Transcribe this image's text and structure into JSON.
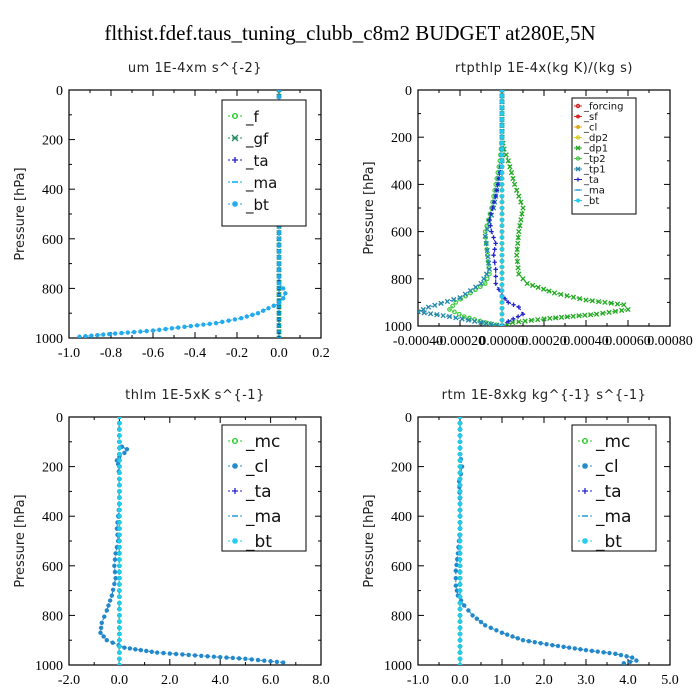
{
  "figure": {
    "title": "flthist.fdef.taus_tuning_clubb_c8m2  BUDGET at280E,5N"
  },
  "chart_data": [
    {
      "type": "line",
      "title": "um  1E-4xm s^{-2}",
      "xlabel": "",
      "ylabel": "Pressure [hPa]",
      "xlim": [
        -1.0,
        0.2
      ],
      "ylim": [
        1000,
        0
      ],
      "xticks": [
        "-1.0",
        "-0.8",
        "-0.6",
        "-0.4",
        "-0.2",
        "0.0",
        "0.2"
      ],
      "yticks": [
        "0",
        "200",
        "400",
        "600",
        "800",
        "1000"
      ],
      "legend_position": "top-right",
      "series": [
        {
          "name": "_f",
          "color": "#22cc22",
          "marker": "circle",
          "x": [
            0.0,
            0.0,
            0.0,
            0.0,
            0.0,
            0.0,
            0.0,
            0.0,
            0.0,
            0.0,
            0.0,
            0.0,
            0.0
          ],
          "y": [
            0,
            100,
            200,
            300,
            400,
            500,
            600,
            700,
            800,
            850,
            900,
            950,
            1000
          ]
        },
        {
          "name": "_gf",
          "color": "#1a8a5a",
          "marker": "x",
          "x": [
            0.0,
            0.0,
            0.0,
            0.0,
            0.0,
            0.0,
            0.0,
            0.0,
            0.0,
            0.0,
            0.0,
            0.0,
            0.0
          ],
          "y": [
            0,
            100,
            200,
            300,
            400,
            500,
            600,
            700,
            800,
            850,
            900,
            950,
            1000
          ]
        },
        {
          "name": "_ta",
          "color": "#1a1acc",
          "marker": "plus",
          "x": [
            0.0,
            0.0,
            0.0,
            0.0,
            0.0,
            0.0,
            0.0,
            0.0,
            0.0,
            0.0,
            0.0,
            0.0,
            0.0
          ],
          "y": [
            0,
            100,
            200,
            300,
            400,
            500,
            600,
            700,
            800,
            850,
            900,
            950,
            1000
          ]
        },
        {
          "name": "_ma",
          "color": "#00aaee",
          "marker": "dash",
          "x": [
            0.0,
            0.0,
            0.0,
            0.0,
            0.0,
            0.0,
            0.0,
            0.0,
            0.0,
            0.0,
            0.0,
            0.0,
            0.0
          ],
          "y": [
            0,
            100,
            200,
            300,
            400,
            500,
            600,
            700,
            800,
            850,
            900,
            950,
            1000
          ]
        },
        {
          "name": "_bt",
          "color": "#22aaee",
          "marker": "star",
          "x": [
            0.0,
            0.0,
            0.01,
            0.03,
            0.04,
            0.01,
            -0.01,
            0.0,
            0.0,
            0.0,
            0.0,
            0.0,
            0.0,
            0.0,
            0.02,
            0.03,
            0.02,
            0.0,
            -0.05,
            -0.1,
            -0.18,
            -0.3,
            -0.45,
            -0.6,
            -0.78,
            -0.95
          ],
          "y": [
            0,
            80,
            110,
            120,
            135,
            150,
            170,
            200,
            300,
            400,
            500,
            600,
            700,
            780,
            800,
            820,
            840,
            860,
            880,
            900,
            920,
            940,
            955,
            970,
            982,
            995
          ]
        }
      ]
    },
    {
      "type": "line",
      "title": "rtpthlp  1E-4x(kg K)/(kg s)",
      "xlabel": "",
      "ylabel": "Pressure [hPa]",
      "xlim": [
        -0.0004,
        0.0008
      ],
      "ylim": [
        1000,
        0
      ],
      "xticks": [
        "-0.00040",
        "-0.00020",
        "0.00000",
        "0.00020",
        "0.00040",
        "0.00060",
        "0.00080"
      ],
      "yticks": [
        "0",
        "200",
        "400",
        "600",
        "800",
        "1000"
      ],
      "legend_position": "top-right",
      "series": [
        {
          "name": "_forcing",
          "color": "#cc2222",
          "marker": "circle",
          "x": [
            0.0,
            0.0,
            0.0,
            0.0,
            0.0,
            0.0,
            0.0,
            0.0,
            0.0,
            0.0,
            0.0
          ],
          "y": [
            0,
            100,
            200,
            300,
            400,
            500,
            600,
            700,
            800,
            900,
            1000
          ]
        },
        {
          "name": "_sf",
          "color": "#dd2222",
          "marker": "star",
          "x": [
            0.0,
            0.0,
            0.0,
            0.0,
            0.0,
            0.0,
            0.0,
            0.0,
            0.0,
            0.0,
            0.0
          ],
          "y": [
            0,
            100,
            200,
            300,
            400,
            500,
            600,
            700,
            800,
            900,
            1000
          ]
        },
        {
          "name": "_cl",
          "color": "#ddaa22",
          "marker": "star",
          "x": [
            0.0,
            0.0,
            0.0,
            0.0,
            0.0,
            0.0,
            0.0,
            0.0,
            0.0,
            0.0,
            0.0
          ],
          "y": [
            0,
            100,
            200,
            300,
            400,
            500,
            600,
            700,
            800,
            900,
            1000
          ]
        },
        {
          "name": "_dp2",
          "color": "#ddcc22",
          "marker": "circle",
          "x": [
            0.0,
            0.0,
            0.0,
            0.0,
            0.0,
            0.0,
            0.0,
            0.0,
            0.0,
            0.0,
            0.0
          ],
          "y": [
            0,
            100,
            200,
            300,
            400,
            500,
            600,
            700,
            800,
            900,
            1000
          ]
        },
        {
          "name": "_dp1",
          "color": "#22aa22",
          "marker": "x",
          "x": [
            0.0,
            0.0,
            1e-05,
            3e-05,
            6e-05,
            0.0001,
            8e-05,
            7e-05,
            8e-05,
            0.00012,
            0.00025,
            0.0004,
            0.00058,
            0.0006,
            0.00045,
            0.0002,
            5e-05,
            0.0
          ],
          "y": [
            0,
            200,
            250,
            300,
            400,
            500,
            600,
            700,
            780,
            820,
            860,
            890,
            910,
            930,
            950,
            970,
            985,
            1000
          ]
        },
        {
          "name": "_tp2",
          "color": "#44cc44",
          "marker": "circle",
          "x": [
            0.0,
            0.0,
            -1e-05,
            -3e-05,
            -5e-05,
            -8e-05,
            -7e-05,
            -6e-05,
            -8e-05,
            -0.00015,
            -0.00022,
            -0.00025,
            -0.00018,
            -8e-05,
            0.0
          ],
          "y": [
            0,
            200,
            300,
            400,
            500,
            600,
            700,
            780,
            820,
            860,
            900,
            930,
            960,
            985,
            1000
          ]
        },
        {
          "name": "_tp1",
          "color": "#2288aa",
          "marker": "x",
          "x": [
            0.0,
            0.0,
            -2e-05,
            -4e-05,
            -6e-05,
            -8e-05,
            -7e-05,
            -6e-05,
            -0.0001,
            -0.0002,
            -0.00035,
            -0.0004,
            -0.00025,
            -0.0001,
            0.0
          ],
          "y": [
            0,
            300,
            400,
            500,
            560,
            620,
            680,
            760,
            820,
            880,
            920,
            940,
            960,
            985,
            1000
          ]
        },
        {
          "name": "_ta",
          "color": "#2222cc",
          "marker": "plus",
          "x": [
            0.0,
            0.0,
            -3e-05,
            -6e-05,
            -5e-05,
            -3e-05,
            -4e-05,
            -3e-05,
            -3e-05,
            0.0,
            3e-05,
            8e-05,
            0.0001,
            3e-05,
            0.0
          ],
          "y": [
            0,
            300,
            450,
            550,
            600,
            650,
            700,
            760,
            820,
            870,
            900,
            920,
            950,
            980,
            1000
          ]
        },
        {
          "name": "_ma",
          "color": "#2299dd",
          "marker": "dash",
          "x": [
            0.0,
            0.0,
            0.0,
            0.0,
            0.0,
            0.0,
            0.0,
            0.0,
            0.0,
            0.0,
            0.0
          ],
          "y": [
            0,
            100,
            200,
            300,
            400,
            500,
            600,
            700,
            800,
            900,
            1000
          ]
        },
        {
          "name": "_bt",
          "color": "#22ccee",
          "marker": "star",
          "x": [
            0.0,
            0.0,
            0.0,
            0.0,
            0.0,
            0.0,
            0.0,
            0.0,
            0.0,
            0.0,
            0.0
          ],
          "y": [
            0,
            100,
            200,
            300,
            400,
            500,
            600,
            700,
            800,
            900,
            1000
          ]
        }
      ]
    },
    {
      "type": "line",
      "title": "thlm  1E-5xK s^{-1}",
      "xlabel": "",
      "ylabel": "Pressure [hPa]",
      "xlim": [
        -2.0,
        8.0
      ],
      "ylim": [
        1000,
        0
      ],
      "xticks": [
        "-2.0",
        "0.0",
        "2.0",
        "4.0",
        "6.0",
        "8.0"
      ],
      "yticks": [
        "0",
        "200",
        "400",
        "600",
        "800",
        "1000"
      ],
      "legend_position": "top-right",
      "series": [
        {
          "name": "_mc",
          "color": "#22cc22",
          "marker": "circle",
          "x": [
            0.0,
            0.0,
            0.0,
            0.0,
            0.0,
            0.0,
            0.0,
            0.0,
            0.0,
            0.0,
            0.0
          ],
          "y": [
            0,
            100,
            200,
            300,
            400,
            500,
            600,
            700,
            800,
            900,
            1000
          ]
        },
        {
          "name": "_cl",
          "color": "#2288cc",
          "marker": "star",
          "x": [
            0.0,
            0.0,
            0.1,
            0.3,
            0.2,
            0.0,
            -0.1,
            -0.05,
            0.0,
            0.0,
            -0.1,
            -0.05,
            -0.15,
            -0.2,
            -0.15,
            -0.3,
            -0.5,
            -0.7,
            -0.75,
            -0.5,
            0.2,
            1.5,
            3.5,
            5.0,
            6.0,
            6.5
          ],
          "y": [
            0,
            100,
            120,
            130,
            145,
            160,
            175,
            190,
            250,
            350,
            450,
            500,
            550,
            600,
            650,
            720,
            780,
            830,
            870,
            900,
            930,
            950,
            965,
            975,
            985,
            990
          ]
        },
        {
          "name": "_ta",
          "color": "#2222cc",
          "marker": "plus",
          "x": [
            0.0,
            0.0,
            0.0,
            0.0,
            0.0,
            0.0,
            0.0,
            0.0,
            0.0,
            0.0,
            0.0
          ],
          "y": [
            0,
            100,
            200,
            300,
            400,
            500,
            600,
            700,
            800,
            900,
            1000
          ]
        },
        {
          "name": "_ma",
          "color": "#2299dd",
          "marker": "dash",
          "x": [
            0.0,
            0.0,
            0.0,
            0.0,
            0.0,
            0.0,
            0.0,
            0.0,
            0.0,
            0.0,
            0.0
          ],
          "y": [
            0,
            100,
            200,
            300,
            400,
            500,
            600,
            700,
            800,
            900,
            1000
          ]
        },
        {
          "name": "_bt",
          "color": "#22ccee",
          "marker": "star",
          "x": [
            0.0,
            0.0,
            0.0,
            0.0,
            0.0,
            0.0,
            0.0,
            0.0,
            0.0,
            0.0,
            0.0
          ],
          "y": [
            0,
            100,
            200,
            300,
            400,
            500,
            600,
            700,
            800,
            900,
            1000
          ]
        }
      ]
    },
    {
      "type": "line",
      "title": "rtm  1E-8xkg kg^{-1} s^{-1}",
      "xlabel": "",
      "ylabel": "Pressure [hPa]",
      "xlim": [
        -1.0,
        5.0
      ],
      "ylim": [
        1000,
        0
      ],
      "xticks": [
        "-1.0",
        "0.0",
        "1.0",
        "2.0",
        "3.0",
        "4.0",
        "5.0"
      ],
      "yticks": [
        "0",
        "200",
        "400",
        "600",
        "800",
        "1000"
      ],
      "legend_position": "top-right",
      "series": [
        {
          "name": "_mc",
          "color": "#22cc22",
          "marker": "circle",
          "x": [
            0.0,
            0.0,
            0.0,
            0.0,
            0.0,
            0.0,
            0.0,
            0.0,
            0.0,
            0.0,
            0.0
          ],
          "y": [
            0,
            100,
            200,
            300,
            400,
            500,
            600,
            700,
            800,
            900,
            1000
          ]
        },
        {
          "name": "_cl",
          "color": "#2288cc",
          "marker": "star",
          "x": [
            0.0,
            0.0,
            0.02,
            0.05,
            0.02,
            -0.02,
            0.0,
            0.0,
            -0.05,
            -0.1,
            -0.1,
            -0.05,
            0.1,
            0.3,
            0.6,
            1.0,
            1.5,
            2.2,
            3.0,
            3.7,
            4.1,
            4.2,
            3.9
          ],
          "y": [
            0,
            150,
            170,
            200,
            230,
            260,
            350,
            450,
            550,
            620,
            680,
            720,
            760,
            800,
            840,
            870,
            900,
            920,
            940,
            955,
            970,
            982,
            993
          ]
        },
        {
          "name": "_ta",
          "color": "#2222cc",
          "marker": "plus",
          "x": [
            0.0,
            0.0,
            0.0,
            0.0,
            0.0,
            0.0,
            0.0,
            0.0,
            0.0,
            0.0,
            0.0
          ],
          "y": [
            0,
            100,
            200,
            300,
            400,
            500,
            600,
            700,
            800,
            900,
            1000
          ]
        },
        {
          "name": "_ma",
          "color": "#2299dd",
          "marker": "dash",
          "x": [
            0.0,
            0.0,
            0.0,
            0.0,
            0.0,
            0.0,
            0.0,
            0.0,
            0.0,
            0.0,
            0.0
          ],
          "y": [
            0,
            100,
            200,
            300,
            400,
            500,
            600,
            700,
            800,
            900,
            1000
          ]
        },
        {
          "name": "_bt",
          "color": "#22ccee",
          "marker": "star",
          "x": [
            0.0,
            0.0,
            0.0,
            0.0,
            0.0,
            0.0,
            0.0,
            0.0,
            0.0,
            0.0,
            0.0
          ],
          "y": [
            0,
            100,
            200,
            300,
            400,
            500,
            600,
            700,
            800,
            900,
            1000
          ]
        }
      ]
    }
  ]
}
